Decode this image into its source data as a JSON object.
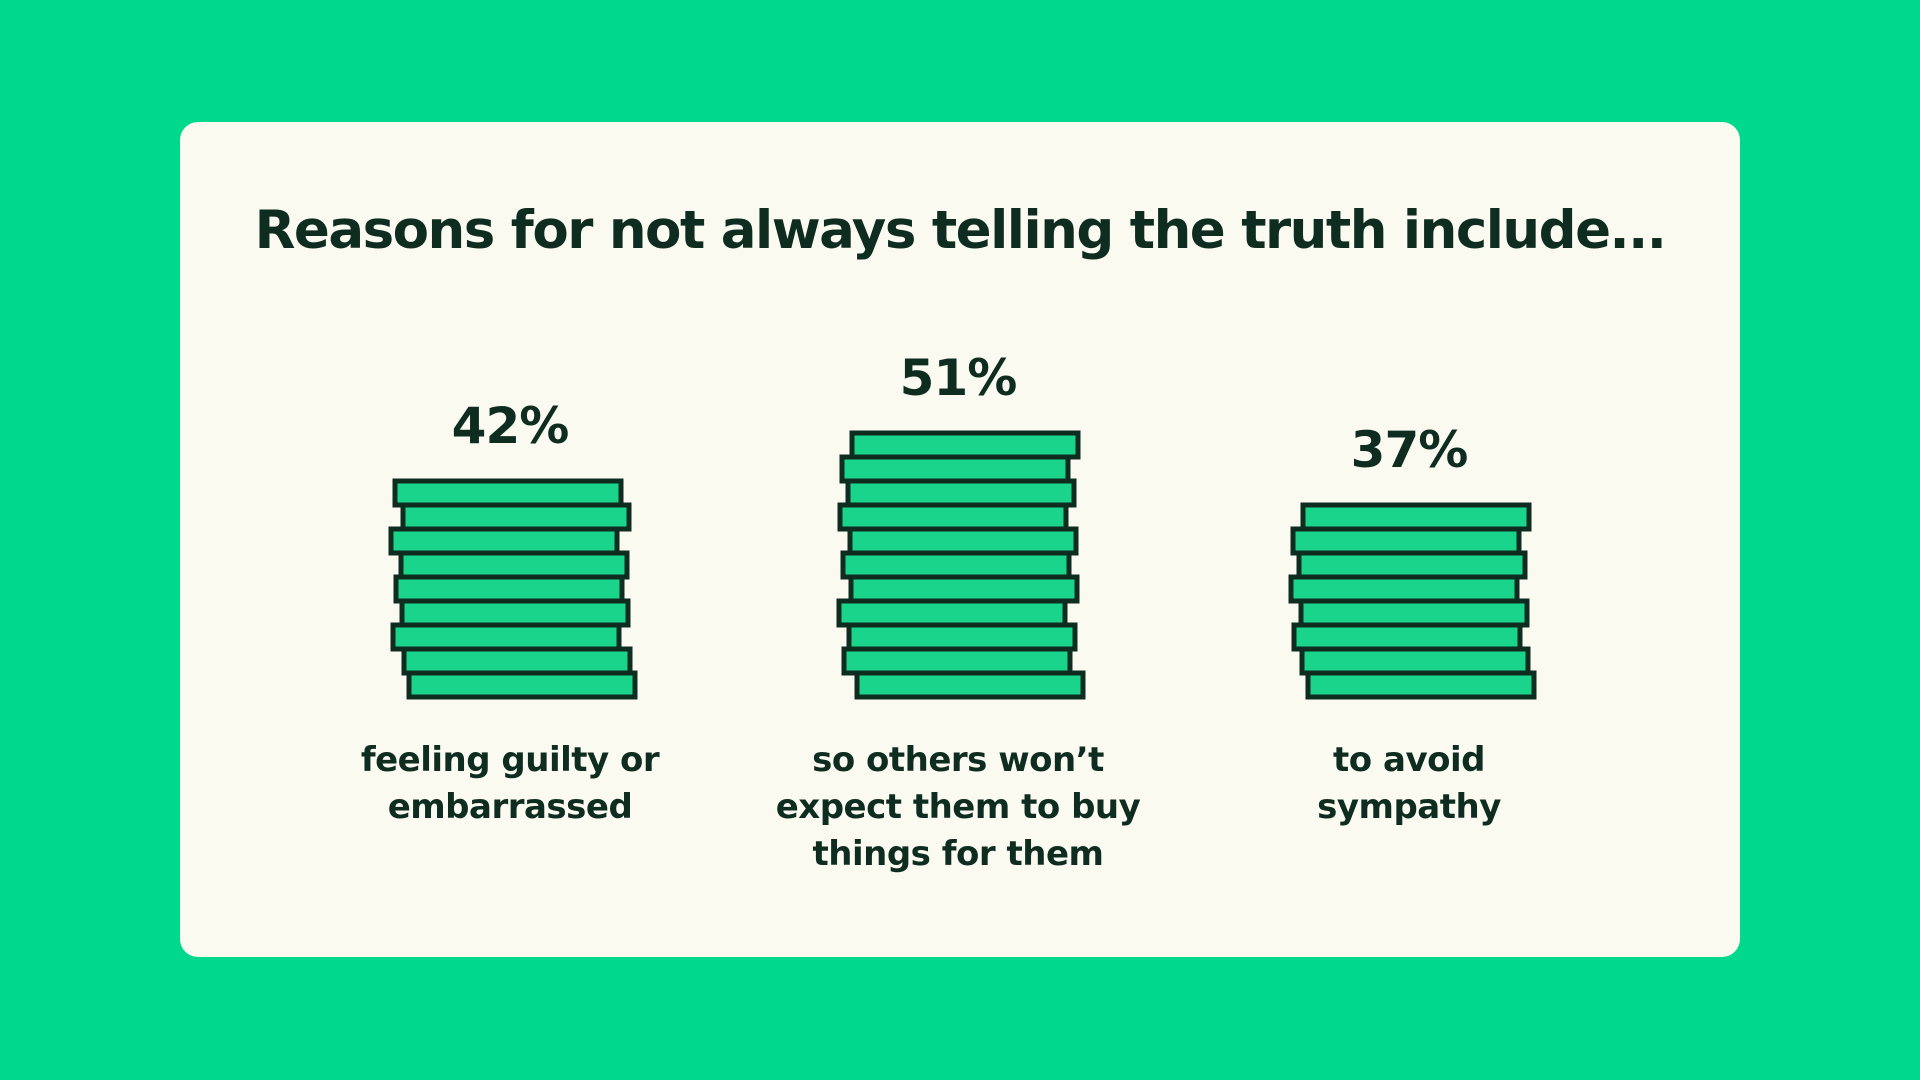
{
  "colors": {
    "background": "#00d98d",
    "card": "#fbfaf1",
    "coin_fill": "#19d48a",
    "coin_stroke": "#0e2d20",
    "text": "#0e2d20"
  },
  "chart_data": {
    "type": "bar",
    "title": "Reasons for not always telling the truth include...",
    "categories": [
      "feeling guilty or embarrassed",
      "so others won’t expect them to buy things for them",
      "to avoid sympathy"
    ],
    "values": [
      42,
      51,
      37
    ],
    "value_labels": [
      "42%",
      "51%",
      "37%"
    ],
    "unit": "%",
    "grid": false,
    "legend": "none"
  },
  "labels": [
    [
      "feeling guilty or",
      "embarrassed"
    ],
    [
      "so others won’t",
      "expect them to buy",
      "things for them"
    ],
    [
      "to avoid",
      "sympathy"
    ]
  ]
}
